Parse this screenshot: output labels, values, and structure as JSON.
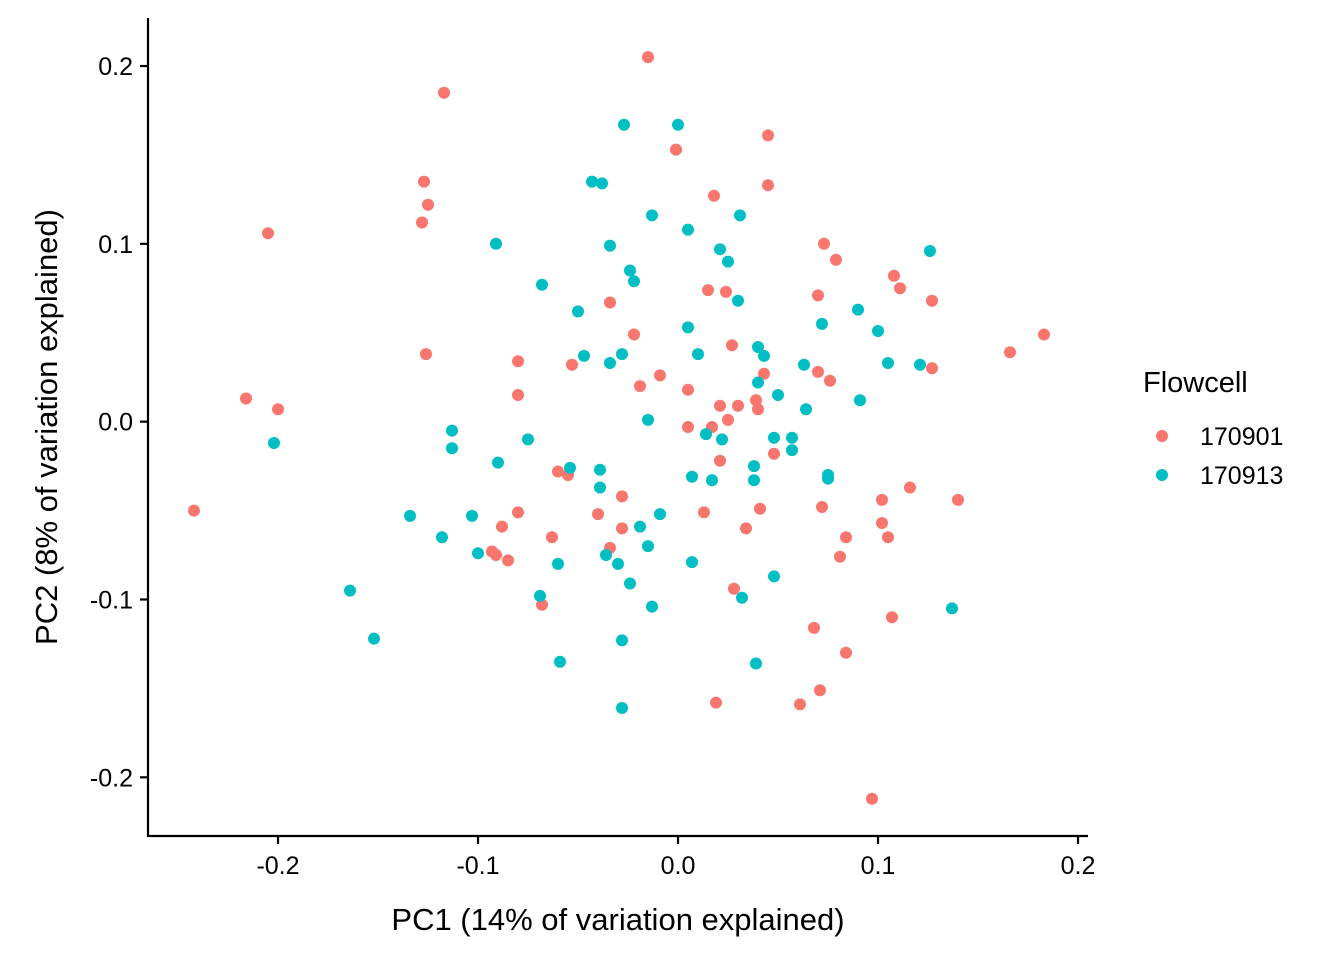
{
  "chart_data": {
    "type": "scatter",
    "title": "",
    "xlabel": "PC1 (14% of variation explained)",
    "ylabel": "PC2 (8% of variation explained)",
    "xlim": [
      -0.265,
      0.205
    ],
    "ylim": [
      -0.233,
      0.227
    ],
    "x_ticks": [
      -0.2,
      -0.1,
      0.0,
      0.1,
      0.2
    ],
    "x_tick_labels": [
      "-0.2",
      "-0.1",
      "0.0",
      "0.1",
      "0.2"
    ],
    "y_ticks": [
      -0.2,
      -0.1,
      0.0,
      0.1,
      0.2
    ],
    "y_tick_labels": [
      "-0.2",
      "-0.1",
      "0.0",
      "0.1",
      "0.2"
    ],
    "grid": false,
    "legend": {
      "title": "Flowcell",
      "position": "right"
    },
    "series": [
      {
        "name": "170901",
        "color": "#F8766D",
        "points": [
          [
            -0.015,
            0.205
          ],
          [
            -0.117,
            0.185
          ],
          [
            0.045,
            0.161
          ],
          [
            -0.001,
            0.153
          ],
          [
            0.045,
            0.133
          ],
          [
            -0.127,
            0.135
          ],
          [
            0.018,
            0.127
          ],
          [
            -0.125,
            0.122
          ],
          [
            -0.128,
            0.112
          ],
          [
            -0.205,
            0.106
          ],
          [
            0.073,
            0.1
          ],
          [
            0.079,
            0.091
          ],
          [
            0.108,
            0.082
          ],
          [
            0.111,
            0.075
          ],
          [
            0.015,
            0.074
          ],
          [
            0.024,
            0.073
          ],
          [
            0.07,
            0.071
          ],
          [
            -0.034,
            0.067
          ],
          [
            0.127,
            0.068
          ],
          [
            -0.022,
            0.049
          ],
          [
            0.183,
            0.049
          ],
          [
            0.166,
            0.039
          ],
          [
            -0.126,
            0.038
          ],
          [
            0.027,
            0.043
          ],
          [
            -0.08,
            0.034
          ],
          [
            -0.053,
            0.032
          ],
          [
            0.127,
            0.03
          ],
          [
            0.07,
            0.028
          ],
          [
            0.043,
            0.027
          ],
          [
            -0.009,
            0.026
          ],
          [
            0.076,
            0.023
          ],
          [
            -0.019,
            0.02
          ],
          [
            0.005,
            0.018
          ],
          [
            -0.216,
            0.013
          ],
          [
            -0.08,
            0.015
          ],
          [
            -0.2,
            0.007
          ],
          [
            0.039,
            0.012
          ],
          [
            0.021,
            0.009
          ],
          [
            0.03,
            0.009
          ],
          [
            0.04,
            0.007
          ],
          [
            0.025,
            0.001
          ],
          [
            0.005,
            -0.003
          ],
          [
            0.017,
            -0.003
          ],
          [
            0.048,
            -0.018
          ],
          [
            0.021,
            -0.022
          ],
          [
            -0.06,
            -0.028
          ],
          [
            -0.055,
            -0.03
          ],
          [
            0.102,
            -0.044
          ],
          [
            0.116,
            -0.037
          ],
          [
            0.14,
            -0.044
          ],
          [
            -0.028,
            -0.042
          ],
          [
            -0.242,
            -0.05
          ],
          [
            -0.08,
            -0.051
          ],
          [
            0.013,
            -0.051
          ],
          [
            -0.04,
            -0.052
          ],
          [
            0.072,
            -0.048
          ],
          [
            0.041,
            -0.049
          ],
          [
            0.102,
            -0.057
          ],
          [
            -0.088,
            -0.059
          ],
          [
            0.105,
            -0.065
          ],
          [
            -0.028,
            -0.06
          ],
          [
            0.034,
            -0.06
          ],
          [
            0.084,
            -0.065
          ],
          [
            -0.063,
            -0.065
          ],
          [
            -0.093,
            -0.073
          ],
          [
            -0.091,
            -0.075
          ],
          [
            -0.085,
            -0.078
          ],
          [
            -0.034,
            -0.071
          ],
          [
            0.081,
            -0.076
          ],
          [
            0.028,
            -0.094
          ],
          [
            -0.068,
            -0.103
          ],
          [
            0.107,
            -0.11
          ],
          [
            0.068,
            -0.116
          ],
          [
            0.084,
            -0.13
          ],
          [
            0.071,
            -0.151
          ],
          [
            0.019,
            -0.158
          ],
          [
            0.061,
            -0.159
          ],
          [
            0.097,
            -0.212
          ]
        ]
      },
      {
        "name": "170913",
        "color": "#00BFC4",
        "points": [
          [
            -0.027,
            0.167
          ],
          [
            0.0,
            0.167
          ],
          [
            -0.043,
            0.135
          ],
          [
            -0.038,
            0.134
          ],
          [
            -0.013,
            0.116
          ],
          [
            0.031,
            0.116
          ],
          [
            0.005,
            0.108
          ],
          [
            -0.091,
            0.1
          ],
          [
            -0.034,
            0.099
          ],
          [
            0.021,
            0.097
          ],
          [
            0.126,
            0.096
          ],
          [
            0.025,
            0.09
          ],
          [
            -0.024,
            0.085
          ],
          [
            -0.022,
            0.079
          ],
          [
            -0.068,
            0.077
          ],
          [
            0.03,
            0.068
          ],
          [
            -0.05,
            0.062
          ],
          [
            0.09,
            0.063
          ],
          [
            0.072,
            0.055
          ],
          [
            0.005,
            0.053
          ],
          [
            0.1,
            0.051
          ],
          [
            0.04,
            0.042
          ],
          [
            0.043,
            0.037
          ],
          [
            -0.047,
            0.037
          ],
          [
            -0.028,
            0.038
          ],
          [
            0.01,
            0.038
          ],
          [
            -0.034,
            0.033
          ],
          [
            0.063,
            0.032
          ],
          [
            0.105,
            0.033
          ],
          [
            0.121,
            0.032
          ],
          [
            0.04,
            0.022
          ],
          [
            0.05,
            0.015
          ],
          [
            0.064,
            0.007
          ],
          [
            0.091,
            0.012
          ],
          [
            -0.015,
            0.001
          ],
          [
            -0.113,
            -0.005
          ],
          [
            0.014,
            -0.007
          ],
          [
            -0.075,
            -0.01
          ],
          [
            -0.202,
            -0.012
          ],
          [
            0.022,
            -0.01
          ],
          [
            0.048,
            -0.009
          ],
          [
            0.057,
            -0.009
          ],
          [
            -0.113,
            -0.015
          ],
          [
            0.057,
            -0.016
          ],
          [
            -0.09,
            -0.023
          ],
          [
            -0.054,
            -0.026
          ],
          [
            -0.039,
            -0.027
          ],
          [
            0.038,
            -0.025
          ],
          [
            0.075,
            -0.03
          ],
          [
            0.007,
            -0.031
          ],
          [
            0.017,
            -0.033
          ],
          [
            0.038,
            -0.033
          ],
          [
            0.075,
            -0.032
          ],
          [
            -0.039,
            -0.037
          ],
          [
            -0.134,
            -0.053
          ],
          [
            -0.103,
            -0.053
          ],
          [
            -0.009,
            -0.052
          ],
          [
            -0.019,
            -0.059
          ],
          [
            -0.118,
            -0.065
          ],
          [
            -0.015,
            -0.07
          ],
          [
            -0.1,
            -0.074
          ],
          [
            -0.036,
            -0.075
          ],
          [
            -0.06,
            -0.08
          ],
          [
            -0.03,
            -0.08
          ],
          [
            0.007,
            -0.079
          ],
          [
            0.048,
            -0.087
          ],
          [
            -0.024,
            -0.091
          ],
          [
            -0.164,
            -0.095
          ],
          [
            -0.069,
            -0.098
          ],
          [
            0.032,
            -0.099
          ],
          [
            -0.013,
            -0.104
          ],
          [
            0.137,
            -0.105
          ],
          [
            -0.152,
            -0.122
          ],
          [
            -0.028,
            -0.123
          ],
          [
            -0.059,
            -0.135
          ],
          [
            0.039,
            -0.136
          ],
          [
            -0.028,
            -0.161
          ]
        ]
      }
    ]
  }
}
